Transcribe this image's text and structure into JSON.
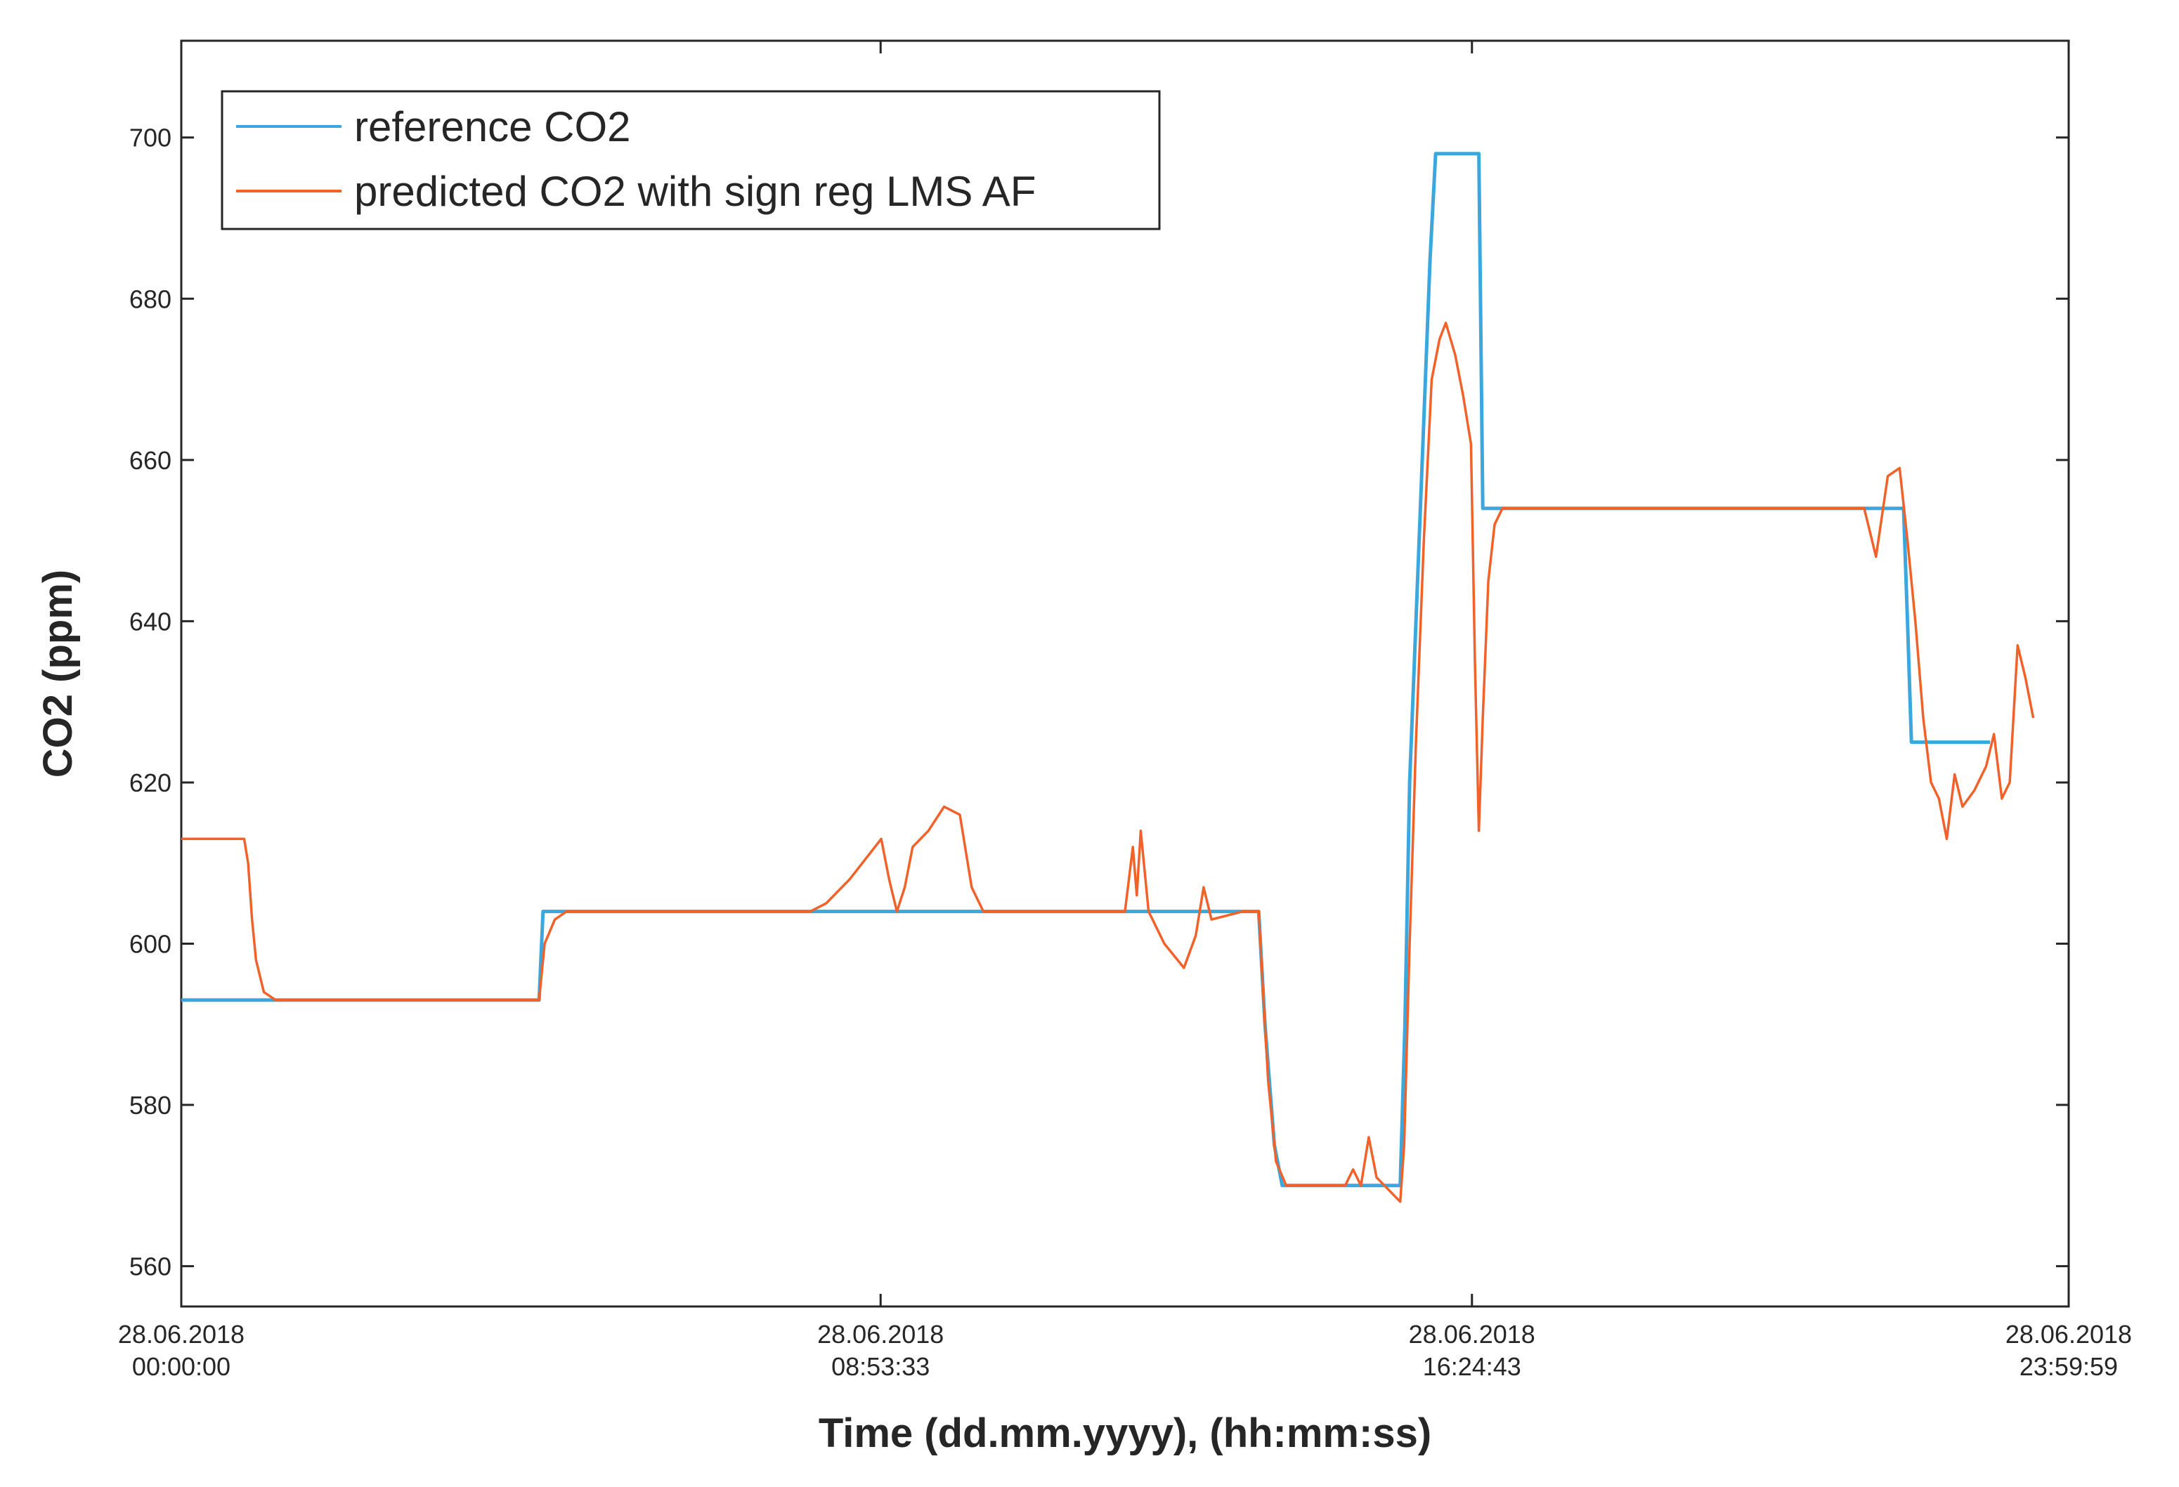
{
  "chart_data": {
    "type": "line",
    "title": "",
    "xlabel": "Time (dd.mm.yyyy), (hh:mm:ss)",
    "ylabel": "CO2 (ppm)",
    "xlim": [
      "28.06.2018 00:00:00",
      "28.06.2018 23:59:59"
    ],
    "ylim": [
      555,
      712
    ],
    "x_unit": "hours since 28.06.2018 00:00:00",
    "x_ticks": [
      {
        "x": 0,
        "date": "28.06.2018",
        "time": "00:00:00"
      },
      {
        "x": 8.8925,
        "date": "28.06.2018",
        "time": "08:53:33"
      },
      {
        "x": 16.4119,
        "date": "28.06.2018",
        "time": "16:24:43"
      },
      {
        "x": 23.9997,
        "date": "28.06.2018",
        "time": "23:59:59"
      }
    ],
    "y_ticks": [
      560,
      580,
      600,
      620,
      640,
      660,
      680,
      700
    ],
    "legend": {
      "position": "top-left"
    },
    "grid": false,
    "series": [
      {
        "name": "reference CO2",
        "color": "#3ba7dc",
        "points": [
          [
            0,
            593
          ],
          [
            1.1,
            593
          ],
          [
            1.11,
            593
          ],
          [
            4.55,
            593
          ],
          [
            4.6,
            604
          ],
          [
            5.2,
            604
          ],
          [
            8.0,
            604
          ],
          [
            13.7,
            604
          ],
          [
            13.78,
            590
          ],
          [
            13.9,
            575
          ],
          [
            14.0,
            570
          ],
          [
            15.4,
            570
          ],
          [
            15.5,
            570
          ],
          [
            15.56,
            590
          ],
          [
            15.62,
            620
          ],
          [
            15.7,
            640
          ],
          [
            15.8,
            665
          ],
          [
            15.88,
            685
          ],
          [
            15.95,
            698
          ],
          [
            16.5,
            698
          ],
          [
            16.55,
            654
          ],
          [
            21.9,
            654
          ],
          [
            21.95,
            640
          ],
          [
            22.0,
            625
          ],
          [
            23.0,
            625
          ]
        ]
      },
      {
        "name": "predicted CO2 with sign reg LMS AF",
        "color": "#f0622a",
        "points": [
          [
            0,
            613
          ],
          [
            0.8,
            613
          ],
          [
            0.85,
            610
          ],
          [
            0.9,
            603
          ],
          [
            0.95,
            598
          ],
          [
            1.05,
            594
          ],
          [
            1.2,
            593
          ],
          [
            4.55,
            593
          ],
          [
            4.62,
            600
          ],
          [
            4.75,
            603
          ],
          [
            4.9,
            604
          ],
          [
            8.0,
            604
          ],
          [
            8.2,
            605
          ],
          [
            8.5,
            608
          ],
          [
            8.9,
            613
          ],
          [
            9.0,
            608
          ],
          [
            9.1,
            604
          ],
          [
            9.2,
            607
          ],
          [
            9.3,
            612
          ],
          [
            9.5,
            614
          ],
          [
            9.7,
            617
          ],
          [
            9.9,
            616
          ],
          [
            10.05,
            607
          ],
          [
            10.2,
            604
          ],
          [
            10.5,
            604
          ],
          [
            12.0,
            604
          ],
          [
            12.1,
            612
          ],
          [
            12.15,
            606
          ],
          [
            12.2,
            614
          ],
          [
            12.3,
            604
          ],
          [
            12.5,
            600
          ],
          [
            12.75,
            597
          ],
          [
            12.9,
            601
          ],
          [
            13.0,
            607
          ],
          [
            13.1,
            603
          ],
          [
            13.5,
            604
          ],
          [
            13.7,
            604
          ],
          [
            13.75,
            595
          ],
          [
            13.82,
            583
          ],
          [
            13.92,
            573
          ],
          [
            14.05,
            570
          ],
          [
            14.8,
            570
          ],
          [
            14.9,
            572
          ],
          [
            15.0,
            570
          ],
          [
            15.1,
            576
          ],
          [
            15.2,
            571
          ],
          [
            15.4,
            569
          ],
          [
            15.5,
            568
          ],
          [
            15.55,
            575
          ],
          [
            15.62,
            600
          ],
          [
            15.7,
            625
          ],
          [
            15.8,
            650
          ],
          [
            15.9,
            670
          ],
          [
            16.0,
            675
          ],
          [
            16.08,
            677
          ],
          [
            16.2,
            673
          ],
          [
            16.3,
            668
          ],
          [
            16.4,
            662
          ],
          [
            16.45,
            635
          ],
          [
            16.5,
            614
          ],
          [
            16.55,
            628
          ],
          [
            16.62,
            645
          ],
          [
            16.7,
            652
          ],
          [
            16.8,
            654
          ],
          [
            21.4,
            654
          ],
          [
            21.55,
            648
          ],
          [
            21.7,
            658
          ],
          [
            21.85,
            659
          ],
          [
            21.95,
            650
          ],
          [
            22.05,
            640
          ],
          [
            22.15,
            628
          ],
          [
            22.25,
            620
          ],
          [
            22.35,
            618
          ],
          [
            22.45,
            613
          ],
          [
            22.55,
            621
          ],
          [
            22.65,
            617
          ],
          [
            22.8,
            619
          ],
          [
            22.95,
            622
          ],
          [
            23.05,
            626
          ],
          [
            23.15,
            618
          ],
          [
            23.25,
            620
          ],
          [
            23.35,
            637
          ],
          [
            23.45,
            633
          ],
          [
            23.55,
            628
          ]
        ]
      }
    ]
  }
}
